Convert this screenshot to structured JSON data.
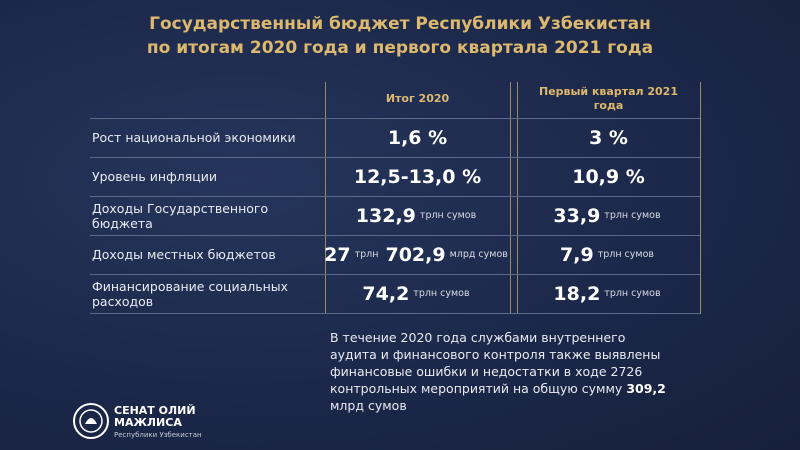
{
  "header": {
    "title_lines": [
      "Государственный бюджет Республики Узбекистан",
      "по итогам 2020 года и первого квартала 2021 года"
    ]
  },
  "table": {
    "columns": [
      "Итог 2020",
      "Первый квартал 2021 года"
    ],
    "rows": [
      {
        "label": "Рост национальной экономики",
        "cells": [
          [
            {
              "value": "1,6 %"
            }
          ],
          [
            {
              "value": "3 %"
            }
          ]
        ]
      },
      {
        "label": "Уровень инфляции",
        "cells": [
          [
            {
              "value": "12,5-13,0 %"
            }
          ],
          [
            {
              "value": "10,9 %"
            }
          ]
        ]
      },
      {
        "label": "Доходы Государственного бюджета",
        "cells": [
          [
            {
              "value": "132,9",
              "unit": "трлн сумов"
            }
          ],
          [
            {
              "value": "33,9",
              "unit": "трлн сумов"
            }
          ]
        ]
      },
      {
        "label": "Доходы местных бюджетов",
        "cells": [
          [
            {
              "value": "27",
              "unit": "трлн"
            },
            {
              "value": "702,9",
              "unit": "млрд сумов"
            }
          ],
          [
            {
              "value": "7,9",
              "unit": "трлн сумов"
            }
          ]
        ]
      },
      {
        "label": "Финансирование социальных расходов",
        "cells": [
          [
            {
              "value": "74,2",
              "unit": "трлн сумов"
            }
          ],
          [
            {
              "value": "18,2",
              "unit": "трлн сумов"
            }
          ]
        ]
      }
    ]
  },
  "note": {
    "text": "В течение 2020 года службами внутреннего аудита и финансового контроля также выявлены финансовые ошибки и недостатки в ходе 2726 контрольных мероприятий на общую сумму",
    "highlight": "309,2",
    "after": "млрд сумов"
  },
  "logo": {
    "line1": "СЕНАТ ОЛИЙ",
    "line2": "МАЖЛИСА",
    "line3": "Республики Узбекистан"
  }
}
